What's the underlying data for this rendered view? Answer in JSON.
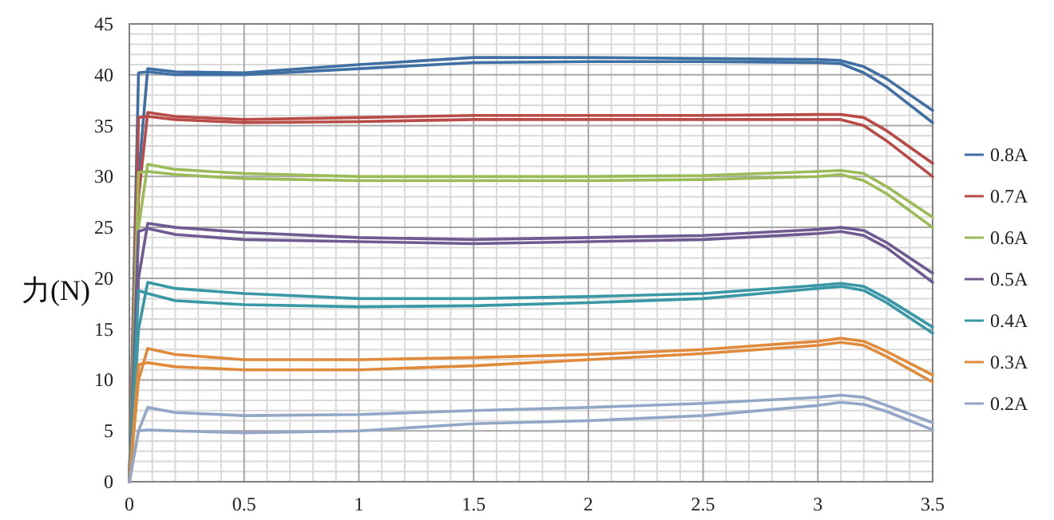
{
  "chart_data": {
    "type": "line",
    "ylabel": "力(N)",
    "x": [
      0,
      0.04,
      0.08,
      0.2,
      0.5,
      1,
      1.5,
      2,
      2.5,
      3,
      3.1,
      3.2,
      3.3,
      3.5
    ],
    "xlim": [
      0,
      3.5
    ],
    "ylim": [
      0,
      45
    ],
    "xticks": [
      0,
      0.5,
      1,
      1.5,
      2,
      2.5,
      3,
      3.5
    ],
    "yticks": [
      0,
      5,
      10,
      15,
      20,
      25,
      30,
      35,
      40,
      45
    ],
    "grid": true,
    "legend": "right",
    "series": [
      {
        "name": "0.8A",
        "color": "#3f6fa3",
        "values": [
          0,
          30,
          40.6,
          40.3,
          40.2,
          41,
          41.7,
          41.7,
          41.6,
          41.5,
          41.4,
          40.8,
          39.6,
          36.5
        ]
      },
      {
        "color": "#3f6fa3",
        "values": [
          0,
          40.2,
          40.3,
          40,
          40,
          40.6,
          41.2,
          41.3,
          41.3,
          41.2,
          41.1,
          40.2,
          38.8,
          35.3
        ]
      },
      {
        "name": "0.7A",
        "color": "#b84a47",
        "values": [
          0,
          28,
          36.3,
          35.9,
          35.6,
          35.8,
          36,
          36,
          36,
          36.1,
          36.1,
          35.8,
          34.5,
          31.3
        ]
      },
      {
        "color": "#b84a47",
        "values": [
          0,
          35.8,
          35.9,
          35.6,
          35.3,
          35.4,
          35.6,
          35.6,
          35.6,
          35.6,
          35.6,
          35,
          33.5,
          30
        ]
      },
      {
        "name": "0.6A",
        "color": "#9bbb59",
        "values": [
          0,
          25,
          31.2,
          30.7,
          30.3,
          30,
          30,
          30,
          30.1,
          30.5,
          30.6,
          30.3,
          29,
          26
        ]
      },
      {
        "color": "#9bbb59",
        "values": [
          0,
          30.4,
          30.5,
          30.2,
          29.8,
          29.6,
          29.6,
          29.6,
          29.7,
          30,
          30.2,
          29.6,
          28.3,
          25
        ]
      },
      {
        "name": "0.5A",
        "color": "#6f5a92",
        "values": [
          0,
          20,
          25.4,
          25,
          24.5,
          24,
          23.8,
          24,
          24.2,
          24.8,
          25,
          24.7,
          23.5,
          20.5
        ]
      },
      {
        "color": "#6f5a92",
        "values": [
          0,
          24.6,
          24.9,
          24.3,
          23.8,
          23.6,
          23.4,
          23.6,
          23.8,
          24.4,
          24.6,
          24.2,
          23,
          19.6
        ]
      },
      {
        "name": "0.4A",
        "color": "#3a98a6",
        "values": [
          0,
          15,
          19.6,
          19,
          18.5,
          18,
          18,
          18.2,
          18.5,
          19.3,
          19.5,
          19.2,
          18,
          15.2
        ]
      },
      {
        "color": "#3a98a6",
        "values": [
          0,
          18.8,
          18.5,
          17.8,
          17.4,
          17.2,
          17.3,
          17.6,
          18,
          19,
          19.2,
          18.8,
          17.6,
          14.6
        ]
      },
      {
        "name": "0.3A",
        "color": "#e08a3c",
        "values": [
          0,
          10,
          13.1,
          12.5,
          12,
          12,
          12.2,
          12.5,
          13,
          13.8,
          14.1,
          13.8,
          12.8,
          10.5
        ]
      },
      {
        "color": "#e08a3c",
        "values": [
          0,
          11.5,
          11.7,
          11.3,
          11,
          11,
          11.4,
          12,
          12.6,
          13.4,
          13.7,
          13.4,
          12.3,
          9.8
        ]
      },
      {
        "name": "0.2A",
        "color": "#93a6c6",
        "values": [
          0,
          5,
          7.3,
          6.8,
          6.5,
          6.6,
          7,
          7.3,
          7.7,
          8.3,
          8.5,
          8.3,
          7.5,
          5.8
        ]
      },
      {
        "color": "#93a6c6",
        "values": [
          0,
          5,
          5.1,
          5,
          4.8,
          5,
          5.7,
          6,
          6.5,
          7.5,
          7.8,
          7.6,
          6.9,
          5.1
        ]
      }
    ]
  }
}
